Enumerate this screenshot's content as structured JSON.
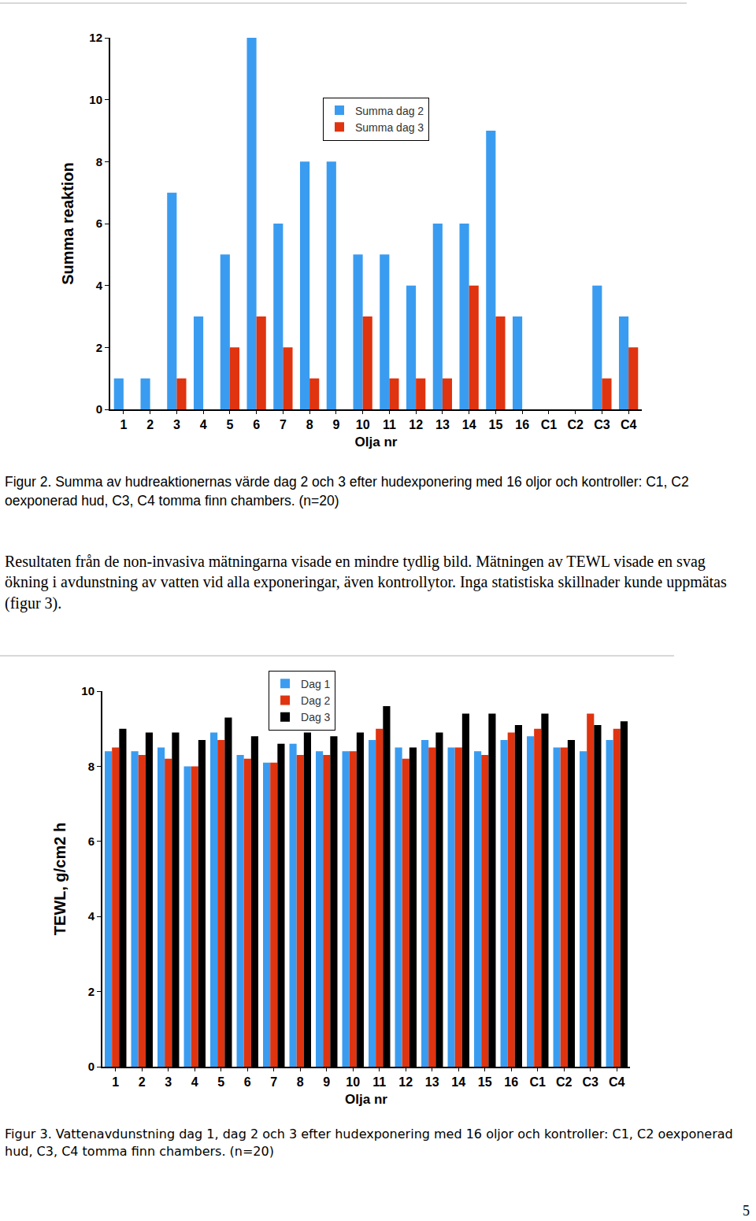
{
  "chart_data": [
    {
      "type": "bar",
      "xlabel": "Olja nr",
      "ylabel": "Summa reaktion",
      "categories": [
        "1",
        "2",
        "3",
        "4",
        "5",
        "6",
        "7",
        "8",
        "9",
        "10",
        "11",
        "12",
        "13",
        "14",
        "15",
        "16",
        "C1",
        "C2",
        "C3",
        "C4"
      ],
      "series": [
        {
          "name": "Summa dag 2",
          "color": "#3a9cf0",
          "values": [
            1,
            1,
            7,
            3,
            5,
            12,
            6,
            8,
            8,
            5,
            5,
            4,
            6,
            6,
            9,
            3,
            0,
            0,
            4,
            3
          ]
        },
        {
          "name": "Summa dag 3",
          "color": "#e0330f",
          "values": [
            0,
            0,
            1,
            0,
            2,
            3,
            2,
            1,
            0,
            3,
            1,
            1,
            1,
            4,
            3,
            0,
            0,
            0,
            1,
            2
          ]
        }
      ],
      "ylim": [
        0,
        12
      ],
      "yticks": [
        0,
        2,
        4,
        6,
        8,
        10,
        12
      ],
      "grid": false,
      "legend": "upper center",
      "caption": "Figur 2. Summa av hudreaktionernas värde dag 2 och 3 efter hudexponering med 16 oljor och kontroller: C1, C2 oexponerad hud, C3, C4 tomma finn chambers. (n=20)"
    },
    {
      "type": "bar",
      "xlabel": "Olja nr",
      "ylabel": "TEWL, g/cm2 h",
      "categories": [
        "1",
        "2",
        "3",
        "4",
        "5",
        "6",
        "7",
        "8",
        "9",
        "10",
        "11",
        "12",
        "13",
        "14",
        "15",
        "16",
        "C1",
        "C2",
        "C3",
        "C4"
      ],
      "series": [
        {
          "name": "Dag 1",
          "color": "#3a9cf0",
          "values": [
            8.4,
            8.4,
            8.5,
            8.0,
            8.9,
            8.3,
            8.1,
            8.6,
            8.4,
            8.4,
            8.7,
            8.5,
            8.7,
            8.5,
            8.4,
            8.7,
            8.8,
            8.5,
            8.4,
            8.7
          ]
        },
        {
          "name": "Dag 2",
          "color": "#e0330f",
          "values": [
            8.5,
            8.3,
            8.2,
            8.0,
            8.7,
            8.2,
            8.1,
            8.3,
            8.3,
            8.4,
            9.0,
            8.2,
            8.5,
            8.5,
            8.3,
            8.9,
            9.0,
            8.5,
            9.4,
            9.0
          ]
        },
        {
          "name": "Dag 3",
          "color": "#000000",
          "values": [
            9.0,
            8.9,
            8.9,
            8.7,
            9.3,
            8.8,
            8.6,
            8.9,
            8.8,
            8.9,
            9.6,
            8.5,
            8.9,
            9.4,
            9.4,
            9.1,
            9.4,
            8.7,
            9.1,
            9.2
          ]
        }
      ],
      "ylim": [
        0,
        10
      ],
      "yticks": [
        0,
        2,
        4,
        6,
        8,
        10
      ],
      "grid": false,
      "legend": "top",
      "caption": "Figur 3. Vattenavdunstning dag 1, dag 2 och 3 efter hudexponering med 16 oljor och kontroller: C1, C2 oexponerad hud, C3, C4 tomma finn chambers. (n=20)"
    }
  ],
  "paragraph": "Resultaten från de non-invasiva mätningarna visade en mindre tydlig bild. Mätningen av TEWL visade en svag ökning i avdunstning av vatten vid alla exponeringar, även kontrollytor. Inga statistiska skillnader kunde uppmätas (figur 3).",
  "page_number": 5
}
